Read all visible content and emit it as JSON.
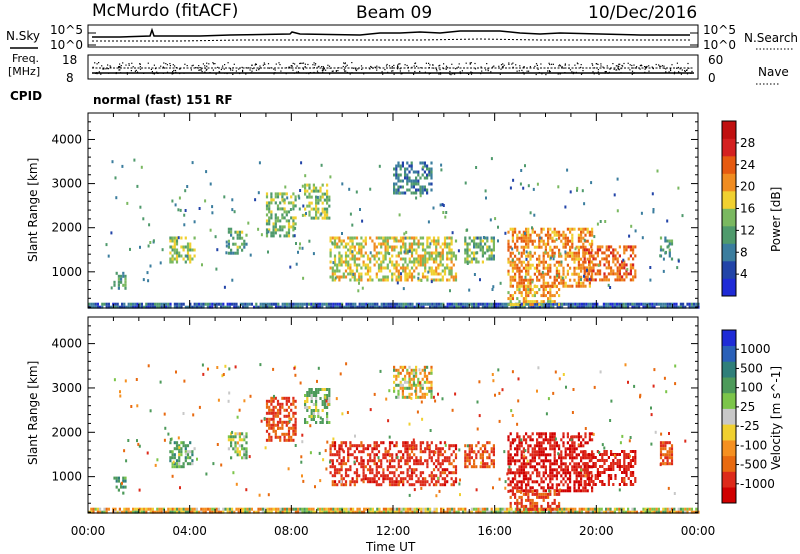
{
  "header": {
    "station": "McMurdo (fitACF)",
    "beam": "Beam 09",
    "date": "10/Dec/2016"
  },
  "status_panels": {
    "nsky_label": "N.Sky",
    "nsearch_label": "N.Search",
    "noise_ticks_left": [
      "10^5",
      "10^0"
    ],
    "noise_ticks_right": [
      "10^5",
      "10^0"
    ],
    "freq_label_line1": "Freq.",
    "freq_label_line2": "[MHz]",
    "freq_ticks": [
      "18",
      "8"
    ],
    "nave_label": "Nave",
    "nave_ticks": [
      "60",
      "0"
    ],
    "cpid_label": "CPID",
    "cpid_text": "normal (fast) 151 RF"
  },
  "colors": {
    "power_scale": [
      "#1f2bd6",
      "#2244a8",
      "#3b7d9e",
      "#4f9a6c",
      "#7ab860",
      "#f0d030",
      "#f08c20",
      "#e65a10",
      "#d42020",
      "#c01010"
    ],
    "velocity_scale": [
      "#1f2bd6",
      "#2a60b8",
      "#2f7f7a",
      "#4d9a5a",
      "#7cc54a",
      "#c8c8c8",
      "#f0d030",
      "#f59020",
      "#e86a10",
      "#dd2a1a",
      "#d00000"
    ]
  },
  "chart_data": [
    {
      "type": "heatmap",
      "title": "",
      "xlabel": "",
      "ylabel": "Slant Range [km]",
      "xlim": [
        0,
        24
      ],
      "ylim": [
        180,
        4600
      ],
      "x_ticks": [
        "00:00",
        "04:00",
        "08:00",
        "12:00",
        "16:00",
        "20:00",
        "00:00"
      ],
      "y_ticks": [
        1000,
        2000,
        3000,
        4000
      ],
      "colorbar": {
        "label": "Power [dB]",
        "ticks": [
          4,
          8,
          12,
          16,
          20,
          24,
          28
        ],
        "range": [
          0,
          30
        ]
      },
      "echo_regions": [
        {
          "t": [
            0.0,
            24.0
          ],
          "range": [
            200,
            300
          ],
          "level": 6
        },
        {
          "t": [
            1.0,
            1.5
          ],
          "range": [
            600,
            1000
          ],
          "level": 10
        },
        {
          "t": [
            3.2,
            4.2
          ],
          "range": [
            1200,
            1800
          ],
          "level": 14
        },
        {
          "t": [
            5.5,
            6.2
          ],
          "range": [
            1400,
            2000
          ],
          "level": 12
        },
        {
          "t": [
            7.0,
            8.2
          ],
          "range": [
            1800,
            2800
          ],
          "level": 13
        },
        {
          "t": [
            8.5,
            9.5
          ],
          "range": [
            2200,
            3000
          ],
          "level": 14
        },
        {
          "t": [
            9.5,
            14.5
          ],
          "range": [
            800,
            1800
          ],
          "level": 16
        },
        {
          "t": [
            12.0,
            13.5
          ],
          "range": [
            2800,
            3500
          ],
          "level": 8
        },
        {
          "t": [
            14.8,
            16.0
          ],
          "range": [
            1200,
            1800
          ],
          "level": 12
        },
        {
          "t": [
            16.5,
            19.8
          ],
          "range": [
            700,
            2000
          ],
          "level": 20
        },
        {
          "t": [
            16.5,
            18.5
          ],
          "range": [
            250,
            700
          ],
          "level": 18
        },
        {
          "t": [
            19.5,
            21.5
          ],
          "range": [
            800,
            1600
          ],
          "level": 22
        },
        {
          "t": [
            22.5,
            23.0
          ],
          "range": [
            1300,
            1800
          ],
          "level": 10
        }
      ]
    },
    {
      "type": "heatmap",
      "title": "",
      "xlabel": "Time UT",
      "ylabel": "Slant Range [km]",
      "xlim": [
        0,
        24
      ],
      "ylim": [
        180,
        4600
      ],
      "x_ticks": [
        "00:00",
        "04:00",
        "08:00",
        "12:00",
        "16:00",
        "20:00",
        "00:00"
      ],
      "y_ticks": [
        1000,
        2000,
        3000,
        4000
      ],
      "colorbar": {
        "label": "Velocity [m s^-1]",
        "ticks": [
          "1000",
          "500",
          "100",
          "25",
          "-25",
          "-100",
          "-500",
          "-1000"
        ],
        "range": [
          -1000,
          1000
        ]
      },
      "echo_regions": [
        {
          "t": [
            0.0,
            24.0
          ],
          "range": [
            200,
            300
          ],
          "vel": 0
        },
        {
          "t": [
            1.0,
            1.5
          ],
          "range": [
            600,
            1000
          ],
          "vel": 200
        },
        {
          "t": [
            3.2,
            4.2
          ],
          "range": [
            1200,
            1800
          ],
          "vel": 150
        },
        {
          "t": [
            5.5,
            6.2
          ],
          "range": [
            1400,
            2000
          ],
          "vel": 100
        },
        {
          "t": [
            7.0,
            8.2
          ],
          "range": [
            1800,
            2800
          ],
          "vel": -300
        },
        {
          "t": [
            8.5,
            9.5
          ],
          "range": [
            2200,
            3000
          ],
          "vel": 120
        },
        {
          "t": [
            9.5,
            14.5
          ],
          "range": [
            800,
            1800
          ],
          "vel": -400
        },
        {
          "t": [
            12.0,
            13.5
          ],
          "range": [
            2800,
            3500
          ],
          "vel": 0
        },
        {
          "t": [
            14.8,
            16.0
          ],
          "range": [
            1200,
            1800
          ],
          "vel": -300
        },
        {
          "t": [
            16.5,
            19.8
          ],
          "range": [
            700,
            2000
          ],
          "vel": -500
        },
        {
          "t": [
            16.5,
            18.5
          ],
          "range": [
            250,
            700
          ],
          "vel": -350
        },
        {
          "t": [
            19.5,
            21.5
          ],
          "range": [
            800,
            1600
          ],
          "vel": -450
        },
        {
          "t": [
            22.5,
            23.0
          ],
          "range": [
            1300,
            1800
          ],
          "vel": -300
        }
      ]
    }
  ]
}
